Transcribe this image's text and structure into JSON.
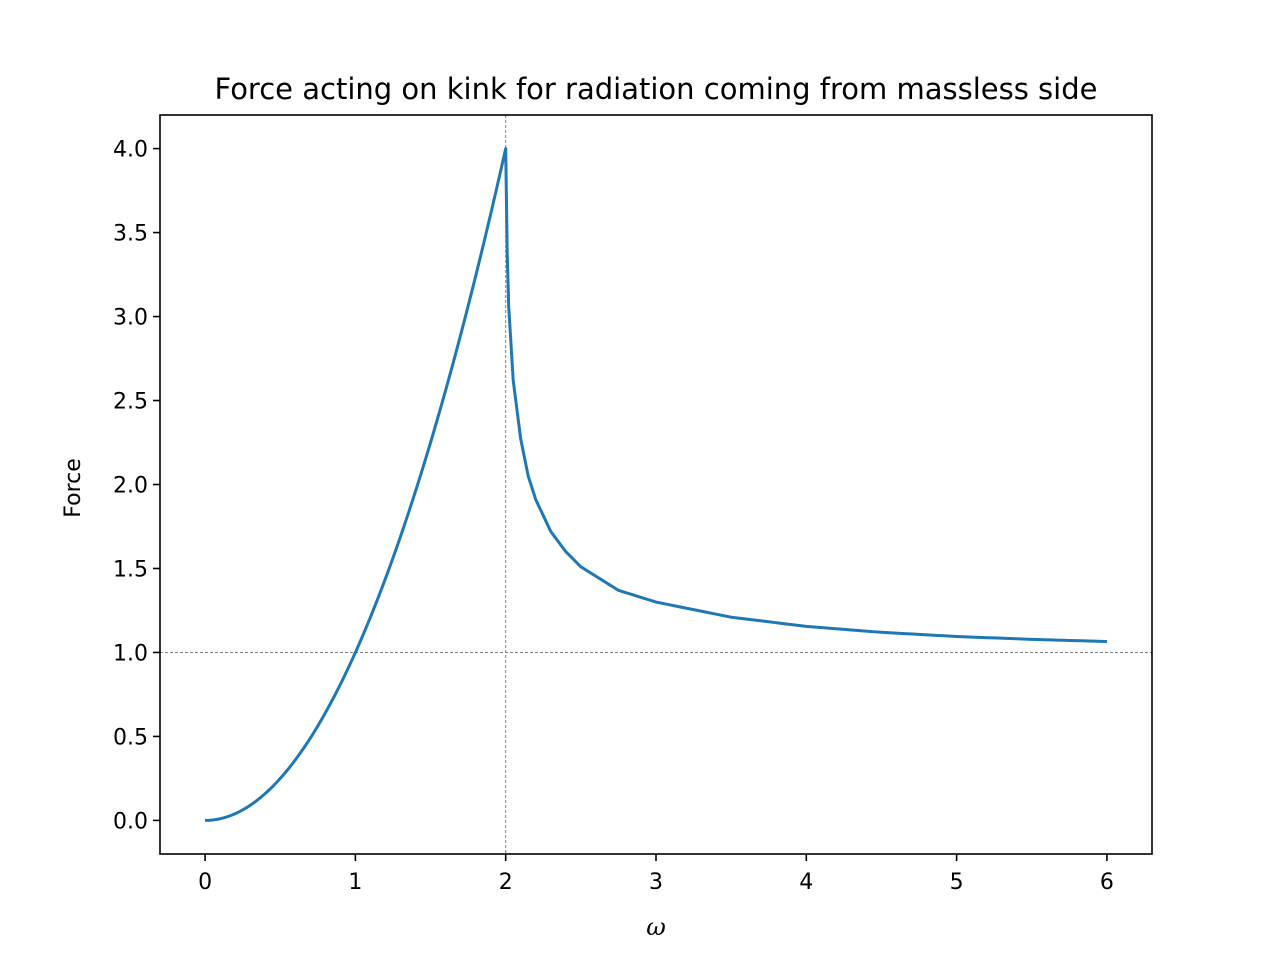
{
  "chart_data": {
    "type": "line",
    "title": "Force acting on kink for radiation coming from massless side",
    "xlabel": "ω",
    "ylabel": "Force",
    "xlim": [
      -0.3,
      6.3
    ],
    "ylim": [
      -0.2,
      4.2
    ],
    "xticks": [
      0,
      1,
      2,
      3,
      4,
      5,
      6
    ],
    "xtick_labels": [
      "0",
      "1",
      "2",
      "3",
      "4",
      "5",
      "6"
    ],
    "yticks": [
      0.0,
      0.5,
      1.0,
      1.5,
      2.0,
      2.5,
      3.0,
      3.5,
      4.0
    ],
    "ytick_labels": [
      "0.0",
      "0.5",
      "1.0",
      "1.5",
      "2.0",
      "2.5",
      "3.0",
      "3.5",
      "4.0"
    ],
    "reference_lines": {
      "vertical_x": 2,
      "horizontal_y": 1
    },
    "grid": false,
    "series": [
      {
        "color": "#1f77b4",
        "x": [
          0,
          0.25,
          0.5,
          0.75,
          1.0,
          1.25,
          1.5,
          1.75,
          2.0,
          2.01,
          2.02,
          2.05,
          2.1,
          2.15,
          2.2,
          2.3,
          2.4,
          2.5,
          2.75,
          3.0,
          3.5,
          4.0,
          4.5,
          5.0,
          5.5,
          6.0
        ],
        "y": [
          0,
          0.0625,
          0.25,
          0.5625,
          1.0,
          1.5625,
          2.25,
          3.0625,
          4.0,
          3.38,
          3.06,
          2.62,
          2.27,
          2.05,
          1.91,
          1.72,
          1.6,
          1.51,
          1.37,
          1.3,
          1.21,
          1.155,
          1.12,
          1.095,
          1.078,
          1.065
        ]
      }
    ]
  }
}
